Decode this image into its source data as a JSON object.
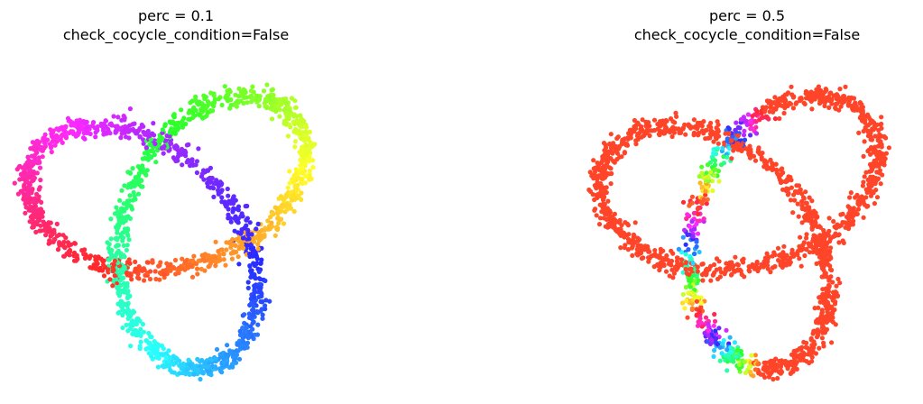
{
  "chart_data": [
    {
      "type": "scatter",
      "title_line1": "perc = 0.1",
      "title_line2": "check_cocycle_condition=False",
      "axes": "off",
      "shape": "trefoil knot projection",
      "coloring": "circular hue by cocycle coordinate",
      "color_profile": "left",
      "n_points": 2000,
      "jitter": 0.055
    },
    {
      "type": "scatter",
      "title_line1": "perc = 0.5",
      "title_line2": "check_cocycle_condition=False",
      "axes": "off",
      "shape": "trefoil knot projection",
      "coloring": "circular hue mostly constant red with full hue sweep on one strand",
      "color_profile": "right",
      "n_points": 2000,
      "jitter": 0.055
    }
  ]
}
